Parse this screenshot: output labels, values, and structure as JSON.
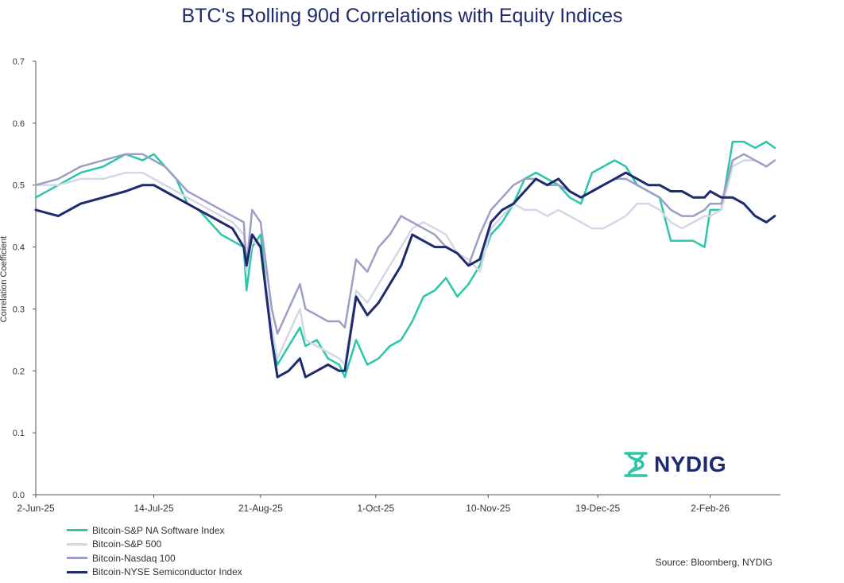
{
  "chart_data": {
    "type": "line",
    "title": "BTC's Rolling 90d Correlations with Equity Indices",
    "xlabel": "",
    "ylabel": "Correlation Coefficient",
    "ylim": [
      0,
      0.7
    ],
    "yticks": [
      0.0,
      0.1,
      0.2,
      0.3,
      0.4,
      0.5,
      0.6,
      0.7
    ],
    "ytick_labels": [
      "0.0",
      "0.1",
      "0.2",
      "0.3",
      "0.4",
      "0.5",
      "0.6",
      "0.7"
    ],
    "xlim": [
      0,
      265
    ],
    "xticks": [
      0,
      42,
      80,
      121,
      161,
      200,
      240
    ],
    "xtick_labels": [
      "2-Jun-25",
      "14-Jul-25",
      "21-Aug-25",
      "1-Oct-25",
      "10-Nov-25",
      "19-Dec-25",
      "2-Feb-26"
    ],
    "series": [
      {
        "name": "Bitcoin-S&P NA Software Index",
        "color": "#2cc6a9",
        "x": [
          0,
          8,
          16,
          24,
          32,
          38,
          42,
          46,
          50,
          54,
          58,
          62,
          66,
          70,
          74,
          75,
          77,
          80,
          84,
          86,
          90,
          94,
          96,
          100,
          104,
          108,
          110,
          114,
          118,
          122,
          126,
          130,
          134,
          138,
          142,
          146,
          150,
          154,
          158,
          162,
          166,
          170,
          174,
          178,
          182,
          186,
          190,
          194,
          198,
          202,
          206,
          210,
          214,
          218,
          222,
          226,
          230,
          234,
          238,
          240,
          244,
          248,
          252,
          256,
          260,
          263
        ],
        "values": [
          0.48,
          0.5,
          0.52,
          0.53,
          0.55,
          0.54,
          0.55,
          0.53,
          0.51,
          0.47,
          0.46,
          0.44,
          0.42,
          0.41,
          0.4,
          0.33,
          0.4,
          0.42,
          0.25,
          0.21,
          0.24,
          0.27,
          0.24,
          0.25,
          0.22,
          0.21,
          0.19,
          0.25,
          0.21,
          0.22,
          0.24,
          0.25,
          0.28,
          0.32,
          0.33,
          0.35,
          0.32,
          0.34,
          0.37,
          0.42,
          0.44,
          0.47,
          0.51,
          0.52,
          0.51,
          0.5,
          0.48,
          0.47,
          0.52,
          0.53,
          0.54,
          0.53,
          0.5,
          0.49,
          0.48,
          0.41,
          0.41,
          0.41,
          0.4,
          0.46,
          0.46,
          0.57,
          0.57,
          0.56,
          0.57,
          0.56
        ]
      },
      {
        "name": "Bitcoin-S&P 500",
        "color": "#d4d8e6",
        "x": [
          0,
          8,
          16,
          24,
          32,
          38,
          42,
          46,
          50,
          54,
          58,
          62,
          66,
          70,
          74,
          75,
          77,
          80,
          84,
          86,
          90,
          94,
          96,
          100,
          104,
          108,
          110,
          114,
          118,
          122,
          126,
          130,
          134,
          138,
          142,
          146,
          150,
          154,
          158,
          162,
          166,
          170,
          174,
          178,
          182,
          186,
          190,
          194,
          198,
          202,
          206,
          210,
          214,
          218,
          222,
          226,
          230,
          234,
          238,
          240,
          244,
          248,
          252,
          256,
          260,
          263
        ],
        "values": [
          0.5,
          0.5,
          0.51,
          0.51,
          0.52,
          0.52,
          0.51,
          0.5,
          0.49,
          0.48,
          0.47,
          0.46,
          0.45,
          0.44,
          0.42,
          0.36,
          0.41,
          0.4,
          0.27,
          0.22,
          0.26,
          0.3,
          0.25,
          0.24,
          0.23,
          0.22,
          0.21,
          0.33,
          0.31,
          0.34,
          0.37,
          0.4,
          0.43,
          0.44,
          0.43,
          0.42,
          0.39,
          0.38,
          0.36,
          0.43,
          0.45,
          0.47,
          0.46,
          0.46,
          0.45,
          0.46,
          0.45,
          0.44,
          0.43,
          0.43,
          0.44,
          0.45,
          0.47,
          0.47,
          0.46,
          0.44,
          0.43,
          0.44,
          0.45,
          0.45,
          0.46,
          0.53,
          0.54,
          0.54,
          0.53,
          0.54
        ]
      },
      {
        "name": "Bitcoin-Nasdaq 100",
        "color": "#9b9fc6",
        "x": [
          0,
          8,
          16,
          24,
          32,
          38,
          42,
          46,
          50,
          54,
          58,
          62,
          66,
          70,
          74,
          75,
          77,
          80,
          84,
          86,
          90,
          94,
          96,
          100,
          104,
          108,
          110,
          114,
          118,
          122,
          126,
          130,
          134,
          138,
          142,
          146,
          150,
          154,
          158,
          162,
          166,
          170,
          174,
          178,
          182,
          186,
          190,
          194,
          198,
          202,
          206,
          210,
          214,
          218,
          222,
          226,
          230,
          234,
          238,
          240,
          244,
          248,
          252,
          256,
          260,
          263
        ],
        "values": [
          0.5,
          0.51,
          0.53,
          0.54,
          0.55,
          0.55,
          0.54,
          0.53,
          0.51,
          0.49,
          0.48,
          0.47,
          0.46,
          0.45,
          0.44,
          0.37,
          0.46,
          0.44,
          0.3,
          0.26,
          0.3,
          0.34,
          0.3,
          0.29,
          0.28,
          0.28,
          0.27,
          0.38,
          0.36,
          0.4,
          0.42,
          0.45,
          0.44,
          0.43,
          0.42,
          0.4,
          0.39,
          0.37,
          0.42,
          0.46,
          0.48,
          0.5,
          0.51,
          0.51,
          0.5,
          0.5,
          0.49,
          0.48,
          0.49,
          0.5,
          0.51,
          0.51,
          0.5,
          0.49,
          0.48,
          0.46,
          0.45,
          0.45,
          0.46,
          0.47,
          0.47,
          0.54,
          0.55,
          0.54,
          0.53,
          0.54
        ]
      },
      {
        "name": "Bitcoin-NYSE Semiconductor Index",
        "color": "#1d2a6e",
        "x": [
          0,
          8,
          16,
          24,
          32,
          38,
          42,
          46,
          50,
          54,
          58,
          62,
          66,
          70,
          74,
          75,
          77,
          80,
          84,
          86,
          90,
          94,
          96,
          100,
          104,
          108,
          110,
          114,
          118,
          122,
          126,
          130,
          134,
          138,
          142,
          146,
          150,
          154,
          158,
          162,
          166,
          170,
          174,
          178,
          182,
          186,
          190,
          194,
          198,
          202,
          206,
          210,
          214,
          218,
          222,
          226,
          230,
          234,
          238,
          240,
          244,
          248,
          252,
          256,
          260,
          263
        ],
        "values": [
          0.46,
          0.45,
          0.47,
          0.48,
          0.49,
          0.5,
          0.5,
          0.49,
          0.48,
          0.47,
          0.46,
          0.45,
          0.44,
          0.43,
          0.4,
          0.37,
          0.42,
          0.4,
          0.25,
          0.19,
          0.2,
          0.22,
          0.19,
          0.2,
          0.21,
          0.2,
          0.2,
          0.32,
          0.29,
          0.31,
          0.34,
          0.37,
          0.42,
          0.41,
          0.4,
          0.4,
          0.39,
          0.37,
          0.38,
          0.44,
          0.46,
          0.47,
          0.49,
          0.51,
          0.5,
          0.51,
          0.49,
          0.48,
          0.49,
          0.5,
          0.51,
          0.52,
          0.51,
          0.5,
          0.5,
          0.49,
          0.49,
          0.48,
          0.48,
          0.49,
          0.48,
          0.48,
          0.47,
          0.45,
          0.44,
          0.45
        ]
      }
    ],
    "legend": "bottom-left",
    "grid": false
  },
  "source_note": "Source: Bloomberg, NYDIG",
  "logo_text": "NYDIG",
  "logo_color": "#2cc6a9"
}
